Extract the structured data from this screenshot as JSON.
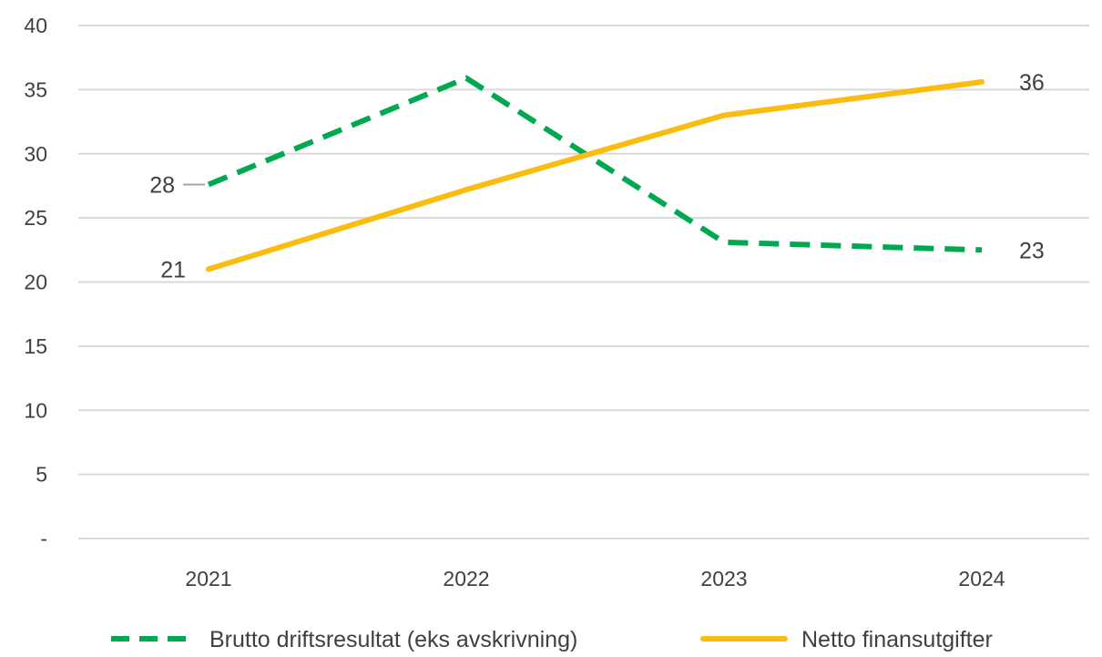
{
  "chart_data": {
    "type": "line",
    "categories": [
      "2021",
      "2022",
      "2023",
      "2024"
    ],
    "ylim": [
      0,
      40
    ],
    "yticks": [
      {
        "value": 0,
        "label": "-"
      },
      {
        "value": 5,
        "label": "5"
      },
      {
        "value": 10,
        "label": "10"
      },
      {
        "value": 15,
        "label": "15"
      },
      {
        "value": 20,
        "label": "20"
      },
      {
        "value": 25,
        "label": "25"
      },
      {
        "value": 30,
        "label": "30"
      },
      {
        "value": 35,
        "label": "35"
      },
      {
        "value": 40,
        "label": "40"
      }
    ],
    "grid": true,
    "legend_position": "bottom",
    "series": [
      {
        "name": "Brutto driftsresultat (eks avskrivning)",
        "values": [
          27.6,
          35.9,
          23.1,
          22.5
        ],
        "color": "#00a84f",
        "style": "dashed",
        "labels": [
          {
            "index": 0,
            "text": "28",
            "placement": "left",
            "leader": true
          },
          {
            "index": 3,
            "text": "23",
            "placement": "right"
          }
        ]
      },
      {
        "name": "Netto finansutgifter",
        "values": [
          21.0,
          27.2,
          33.0,
          35.6
        ],
        "color": "#fbbb0f",
        "style": "solid",
        "labels": [
          {
            "index": 0,
            "text": "21",
            "placement": "left"
          },
          {
            "index": 3,
            "text": "36",
            "placement": "right"
          }
        ]
      }
    ]
  }
}
